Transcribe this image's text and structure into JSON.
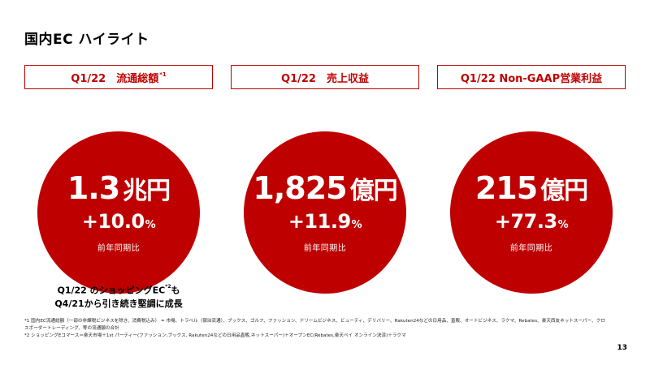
{
  "title": "国内EC ハイライト",
  "kpis": [
    {
      "label": "Q1/22　流通総額",
      "label_sup": "*1",
      "value": "1.3",
      "unit": "兆円",
      "growth": "+10.0",
      "growth_unit": "%",
      "growth_label": "前年同期比"
    },
    {
      "label": "Q1/22　売上収益",
      "label_sup": "",
      "value": "1,825",
      "unit": "億円",
      "growth": "+11.9",
      "growth_unit": "%",
      "growth_label": "前年同期比"
    },
    {
      "label": "Q1/22 Non-GAAP営業利益",
      "label_sup": "",
      "value": "215",
      "unit": "億円",
      "growth": "+77.3",
      "growth_unit": "%",
      "growth_label": "前年同期比"
    }
  ],
  "note": {
    "line1_a": "Q1/22 のショッピングEC",
    "line1_sup": "*2",
    "line1_b": "も",
    "line2": "Q4/21から引き続き堅調に成長"
  },
  "footnotes": [
    "*1 国内EC流通総額（一部の非課税ビジネスを除き、消費税込み） = 市場、トラベル（宿泊流通）、ブックス、ゴルフ、ファッション、ドリームビジネス、ビューティ、デリバリー、Rakuten24などの日用品、直販、オートビジネス、ラクマ、Rebates、楽天西友ネットスーパー、クロスボーダートレーディング、等の流通額の合計",
    "*2 ショッピングEコマース＝楽天市場＋1st パーティー(ファッション,ブックス, Rakuten24などの日用品直販,ネットスーパー)＋オープンEC(Rebates,楽天ペイ オンライン決済)＋ラクマ"
  ],
  "page_number": "13"
}
